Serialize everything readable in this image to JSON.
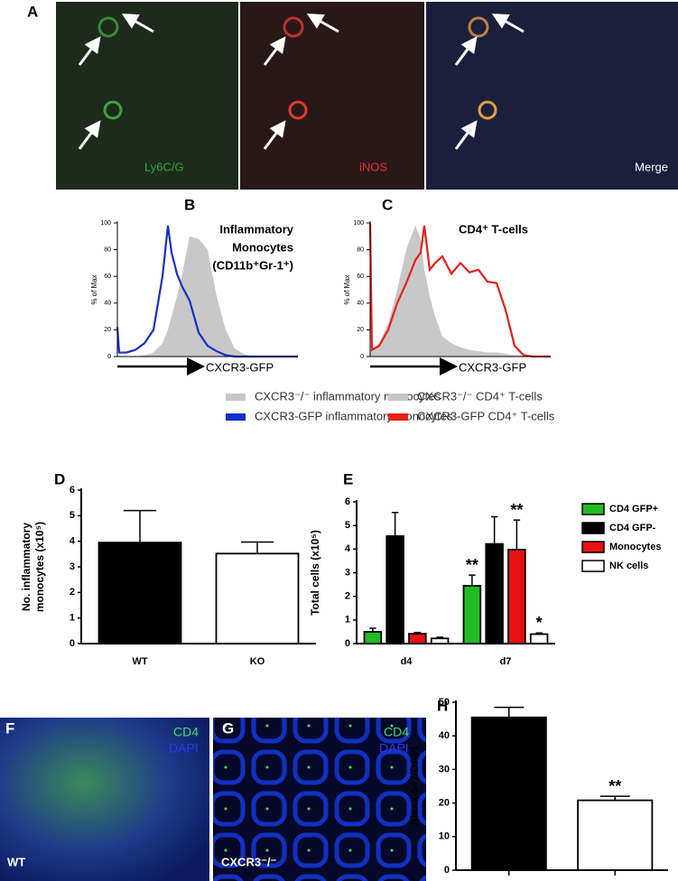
{
  "panel_labels": [
    "A",
    "B",
    "C",
    "D",
    "E",
    "F",
    "G",
    "H"
  ],
  "micrographs": {
    "a": [
      "Ly6C/G",
      "iNOS",
      "Merge"
    ],
    "f": [
      "CD4",
      "DAPI",
      "WT"
    ],
    "g": [
      "CD4",
      "DAPI",
      "CXCR3⁻/⁻"
    ]
  },
  "chart_data": [
    {
      "type": "line",
      "ylabel": "% of Max",
      "xlabel": "CXCR3-GFP",
      "annotation": [
        "Inflammatory",
        "Monocytes",
        "(CD11b⁺Gr-1⁺)"
      ],
      "x": [
        0,
        1,
        5,
        10,
        15,
        20,
        25,
        28,
        30,
        33,
        36,
        40,
        45,
        50,
        55,
        60,
        65,
        70,
        75,
        80,
        85,
        90,
        100
      ],
      "xlim": [
        0,
        100
      ],
      "ylim": [
        0,
        100
      ],
      "yticks": [
        0,
        20,
        40,
        60,
        80,
        100
      ],
      "series": [
        {
          "name": "CXCR3⁻/⁻ inflammatory monocytes",
          "color": "#c8c8c8",
          "fill": true,
          "values": [
            0,
            0,
            0,
            0,
            1,
            3,
            10,
            20,
            30,
            45,
            62,
            90,
            88,
            80,
            45,
            20,
            6,
            2,
            0,
            0,
            0,
            0,
            0
          ]
        },
        {
          "name": "CXCR3-GFP inflammatory monocytes",
          "color": "#1530c8",
          "fill": false,
          "values": [
            22,
            3,
            3,
            5,
            10,
            20,
            60,
            98,
            78,
            62,
            52,
            42,
            18,
            8,
            4,
            1,
            0,
            0,
            0,
            0,
            0,
            0,
            0
          ]
        }
      ]
    },
    {
      "type": "line",
      "ylabel": "% of Max",
      "xlabel": "CXCR3-GFP",
      "annotation": [
        "CD4⁺ T-cells"
      ],
      "x": [
        0,
        1,
        5,
        10,
        15,
        20,
        25,
        28,
        30,
        33,
        36,
        40,
        45,
        50,
        55,
        60,
        65,
        70,
        75,
        80,
        85,
        90,
        100
      ],
      "xlim": [
        0,
        100
      ],
      "ylim": [
        0,
        100
      ],
      "yticks": [
        0,
        20,
        40,
        60,
        80,
        100
      ],
      "series": [
        {
          "name": "CXCR3⁻/⁻ CD4⁺ T-cells",
          "color": "#c8c8c8",
          "fill": true,
          "values": [
            5,
            6,
            10,
            25,
            50,
            80,
            98,
            88,
            65,
            45,
            30,
            15,
            10,
            7,
            5,
            4,
            3,
            3,
            2,
            1,
            1,
            0,
            0
          ]
        },
        {
          "name": "CXCR3-GFP CD4⁺ T-cells",
          "color": "#e8201a",
          "fill": false,
          "values": [
            100,
            5,
            8,
            20,
            40,
            55,
            72,
            78,
            98,
            65,
            70,
            75,
            62,
            70,
            63,
            65,
            56,
            55,
            35,
            8,
            1,
            0,
            0
          ]
        }
      ]
    },
    {
      "type": "bar",
      "ylabel": [
        "No. inflammatory",
        "monocytes (x10⁵)"
      ],
      "categories": [
        "WT",
        "KO"
      ],
      "values": [
        3.95,
        3.52
      ],
      "errors": [
        1.25,
        0.45
      ],
      "colors": [
        "#000000",
        "#ffffff"
      ],
      "ylim": [
        0,
        6
      ],
      "yticks": [
        0,
        1,
        2,
        3,
        4,
        5,
        6
      ]
    },
    {
      "type": "bar",
      "ylabel": [
        "Total cells (x10⁵)"
      ],
      "categories": [
        "d4",
        "d7"
      ],
      "ylim": [
        0,
        6
      ],
      "yticks": [
        0,
        1,
        2,
        3,
        4,
        5,
        6
      ],
      "series": [
        {
          "name": "CD4 GFP+",
          "color": "#22bb22",
          "values": [
            0.5,
            2.45
          ],
          "errors": [
            0.15,
            0.45
          ],
          "significance": [
            null,
            "**"
          ]
        },
        {
          "name": "CD4 GFP-",
          "color": "#000000",
          "values": [
            4.55,
            4.22
          ],
          "errors": [
            1.0,
            1.15
          ],
          "significance": [
            null,
            null
          ]
        },
        {
          "name": "Monocytes",
          "color": "#e81010",
          "values": [
            0.42,
            3.98
          ],
          "errors": [
            0.05,
            1.25
          ],
          "significance": [
            null,
            "**"
          ]
        },
        {
          "name": "NK cells",
          "color": "#ffffff",
          "values": [
            0.22,
            0.4
          ],
          "errors": [
            0.05,
            0.05
          ],
          "significance": [
            null,
            "*"
          ]
        }
      ]
    },
    {
      "type": "bar",
      "ylabel": [
        "Alexa-647/DAPI"
      ],
      "categories": [
        null,
        null
      ],
      "values": [
        45.5,
        20.8
      ],
      "errors": [
        3.0,
        1.2
      ],
      "significance": [
        null,
        "**"
      ],
      "colors": [
        "#000000",
        "#ffffff"
      ],
      "ylim": [
        0,
        50
      ],
      "yticks": [
        0,
        10,
        20,
        30,
        40,
        50
      ]
    }
  ]
}
